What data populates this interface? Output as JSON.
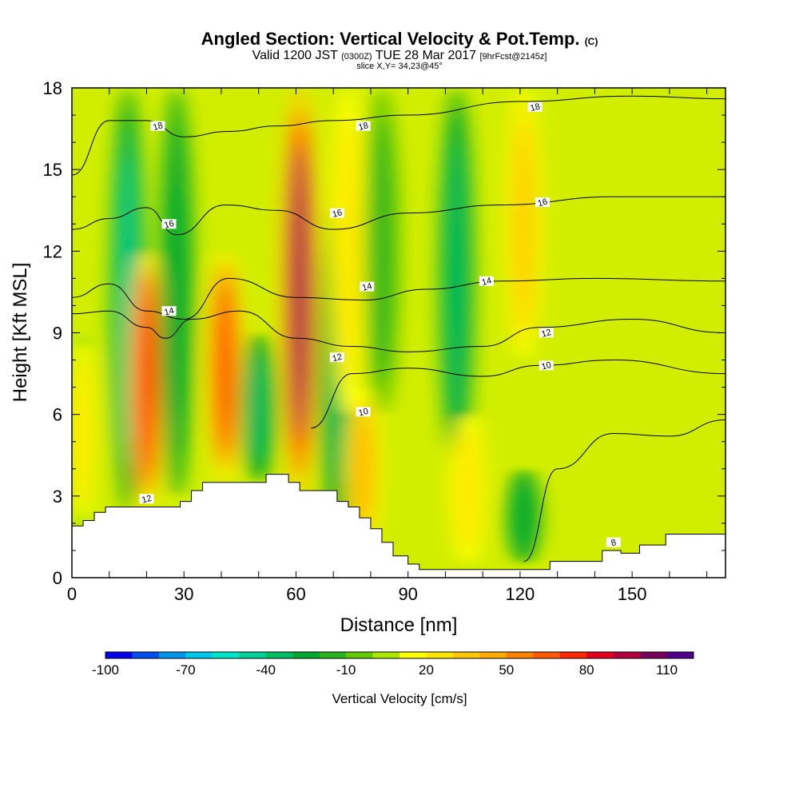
{
  "title": {
    "main": "Angled Section: Vertical Velocity & Pot.Temp.",
    "main_suffix": "(C)",
    "valid_prefix": "Valid 1200 JST",
    "valid_utc": "(0300Z)",
    "valid_date": "TUE 28 Mar 2017",
    "forecast": "[9hrFcst@2145z]",
    "slice": "slice X,Y= 34,23@45°"
  },
  "chart_data": {
    "type": "heatmap",
    "xlabel": "Distance [nm]",
    "ylabel": "Height [Kft MSL]",
    "xlim": [
      0,
      175
    ],
    "ylim": [
      0,
      18
    ],
    "x_ticks": [
      0,
      30,
      60,
      90,
      120,
      150
    ],
    "y_ticks": [
      0,
      3,
      6,
      9,
      12,
      15,
      18
    ],
    "colorbar": {
      "label": "Vertical Velocity [cm/s]",
      "tick_labels": [
        "-100",
        "-70",
        "-40",
        "-10",
        "20",
        "50",
        "80",
        "110"
      ],
      "levels": [
        -100,
        -90,
        -80,
        -70,
        -60,
        -50,
        -40,
        -30,
        -20,
        -10,
        0,
        10,
        20,
        30,
        40,
        50,
        60,
        70,
        80,
        90,
        100,
        110
      ],
      "colors": [
        "#0000ee",
        "#0050ee",
        "#0096ee",
        "#00c8ee",
        "#00e6c8",
        "#00d296",
        "#00be64",
        "#00aa32",
        "#28b41e",
        "#64c800",
        "#aae600",
        "#ffff00",
        "#ffe600",
        "#ffc800",
        "#ffaa00",
        "#ff8200",
        "#ff5a00",
        "#ff2800",
        "#e6001e",
        "#b4003c",
        "#78005a",
        "#50008c"
      ]
    },
    "vertical_velocity_bands": [
      {
        "x": 3,
        "y": [
          1.8,
          9
        ],
        "w": 28
      },
      {
        "x": 15,
        "y": [
          2.5,
          18
        ],
        "w": -45
      },
      {
        "x": 20,
        "y": [
          2.5,
          12
        ],
        "w": 85
      },
      {
        "x": 28,
        "y": [
          3,
          18
        ],
        "w": -30
      },
      {
        "x": 41,
        "y": [
          3.5,
          12
        ],
        "w": 80
      },
      {
        "x": 50,
        "y": [
          3.5,
          9
        ],
        "w": -40
      },
      {
        "x": 61,
        "y": [
          3,
          18
        ],
        "w": 110
      },
      {
        "x": 71,
        "y": [
          1.5,
          14
        ],
        "w": -35
      },
      {
        "x": 74,
        "y": [
          6,
          18
        ],
        "w": 30
      },
      {
        "x": 78,
        "y": [
          1,
          7
        ],
        "w": 45
      },
      {
        "x": 83,
        "y": [
          6,
          18
        ],
        "w": -15
      },
      {
        "x": 103,
        "y": [
          4,
          18
        ],
        "w": -40
      },
      {
        "x": 106,
        "y": [
          0.5,
          6
        ],
        "w": 30
      },
      {
        "x": 121,
        "y": [
          0.5,
          4
        ],
        "w": -30
      },
      {
        "x": 121,
        "y": [
          8,
          18
        ],
        "w": 40
      }
    ],
    "potential_temperature_contours": [
      {
        "label": "8",
        "points": [
          [
            121,
            0.6
          ],
          [
            130,
            4
          ],
          [
            145,
            5.3
          ],
          [
            160,
            5.2
          ],
          [
            175,
            5.8
          ]
        ]
      },
      {
        "label": "10",
        "points": [
          [
            64,
            5.5
          ],
          [
            75,
            7.5
          ],
          [
            90,
            7.7
          ],
          [
            110,
            7.4
          ],
          [
            125,
            7.8
          ],
          [
            145,
            8
          ],
          [
            175,
            7.5
          ]
        ]
      },
      {
        "label": "12",
        "points": [
          [
            0,
            9.7
          ],
          [
            10,
            9.8
          ],
          [
            20,
            9.2
          ],
          [
            25,
            8.8
          ],
          [
            32,
            9.5
          ],
          [
            45,
            9.8
          ],
          [
            60,
            8.8
          ],
          [
            75,
            8.5
          ],
          [
            90,
            8.3
          ],
          [
            110,
            8.5
          ],
          [
            125,
            9.2
          ],
          [
            150,
            9.5
          ],
          [
            175,
            9
          ]
        ]
      },
      {
        "label": "14",
        "points": [
          [
            0,
            10.3
          ],
          [
            10,
            10.8
          ],
          [
            20,
            9.8
          ],
          [
            30,
            9.5
          ],
          [
            42,
            11
          ],
          [
            60,
            10.3
          ],
          [
            78,
            10.2
          ],
          [
            95,
            10.6
          ],
          [
            115,
            10.9
          ],
          [
            140,
            11
          ],
          [
            175,
            10.9
          ]
        ]
      },
      {
        "label": "16",
        "points": [
          [
            0,
            12.8
          ],
          [
            10,
            13.2
          ],
          [
            20,
            13.6
          ],
          [
            28,
            12.6
          ],
          [
            41,
            13.7
          ],
          [
            55,
            13.5
          ],
          [
            70,
            12.8
          ],
          [
            90,
            13.4
          ],
          [
            115,
            13.7
          ],
          [
            145,
            14
          ],
          [
            175,
            14
          ]
        ]
      },
      {
        "label": "18",
        "points": [
          [
            0,
            14.8
          ],
          [
            10,
            16.8
          ],
          [
            20,
            16.8
          ],
          [
            30,
            16.2
          ],
          [
            42,
            16.4
          ],
          [
            55,
            16.6
          ],
          [
            70,
            16.8
          ],
          [
            90,
            17
          ],
          [
            120,
            17.5
          ],
          [
            150,
            17.7
          ],
          [
            175,
            17.6
          ]
        ]
      }
    ],
    "contour_labels": [
      {
        "text": "8",
        "x": 145,
        "y": 1.3
      },
      {
        "text": "10",
        "x": 78,
        "y": 6.1
      },
      {
        "text": "10",
        "x": 127,
        "y": 7.8
      },
      {
        "text": "12",
        "x": 20,
        "y": 2.9
      },
      {
        "text": "12",
        "x": 71,
        "y": 8.1
      },
      {
        "text": "12",
        "x": 127,
        "y": 9
      },
      {
        "text": "14",
        "x": 26,
        "y": 9.8
      },
      {
        "text": "14",
        "x": 79,
        "y": 10.7
      },
      {
        "text": "14",
        "x": 111,
        "y": 10.9
      },
      {
        "text": "16",
        "x": 26,
        "y": 13
      },
      {
        "text": "16",
        "x": 71,
        "y": 13.4
      },
      {
        "text": "16",
        "x": 126,
        "y": 13.8
      },
      {
        "text": "18",
        "x": 23,
        "y": 16.6
      },
      {
        "text": "18",
        "x": 78,
        "y": 16.6
      },
      {
        "text": "18",
        "x": 124,
        "y": 17.3
      }
    ],
    "terrain": [
      [
        0,
        1.9
      ],
      [
        3,
        1.9
      ],
      [
        3,
        2.1
      ],
      [
        6,
        2.1
      ],
      [
        6,
        2.4
      ],
      [
        9,
        2.4
      ],
      [
        9,
        2.6
      ],
      [
        29,
        2.6
      ],
      [
        29,
        2.8
      ],
      [
        32,
        2.8
      ],
      [
        32,
        3.2
      ],
      [
        35,
        3.2
      ],
      [
        35,
        3.5
      ],
      [
        52,
        3.5
      ],
      [
        52,
        3.8
      ],
      [
        58,
        3.8
      ],
      [
        58,
        3.5
      ],
      [
        61,
        3.5
      ],
      [
        61,
        3.2
      ],
      [
        71,
        3.2
      ],
      [
        71,
        2.8
      ],
      [
        74,
        2.8
      ],
      [
        74,
        2.6
      ],
      [
        77,
        2.6
      ],
      [
        77,
        2.2
      ],
      [
        80,
        2.2
      ],
      [
        80,
        1.8
      ],
      [
        83,
        1.8
      ],
      [
        83,
        1.3
      ],
      [
        86,
        1.3
      ],
      [
        86,
        0.8
      ],
      [
        90,
        0.8
      ],
      [
        90,
        0.5
      ],
      [
        93,
        0.5
      ],
      [
        93,
        0.3
      ],
      [
        128,
        0.3
      ],
      [
        128,
        0.6
      ],
      [
        142,
        0.6
      ],
      [
        142,
        1
      ],
      [
        147,
        1
      ],
      [
        147,
        0.9
      ],
      [
        152,
        0.9
      ],
      [
        152,
        1.2
      ],
      [
        159,
        1.2
      ],
      [
        159,
        1.6
      ],
      [
        175,
        1.6
      ]
    ]
  }
}
